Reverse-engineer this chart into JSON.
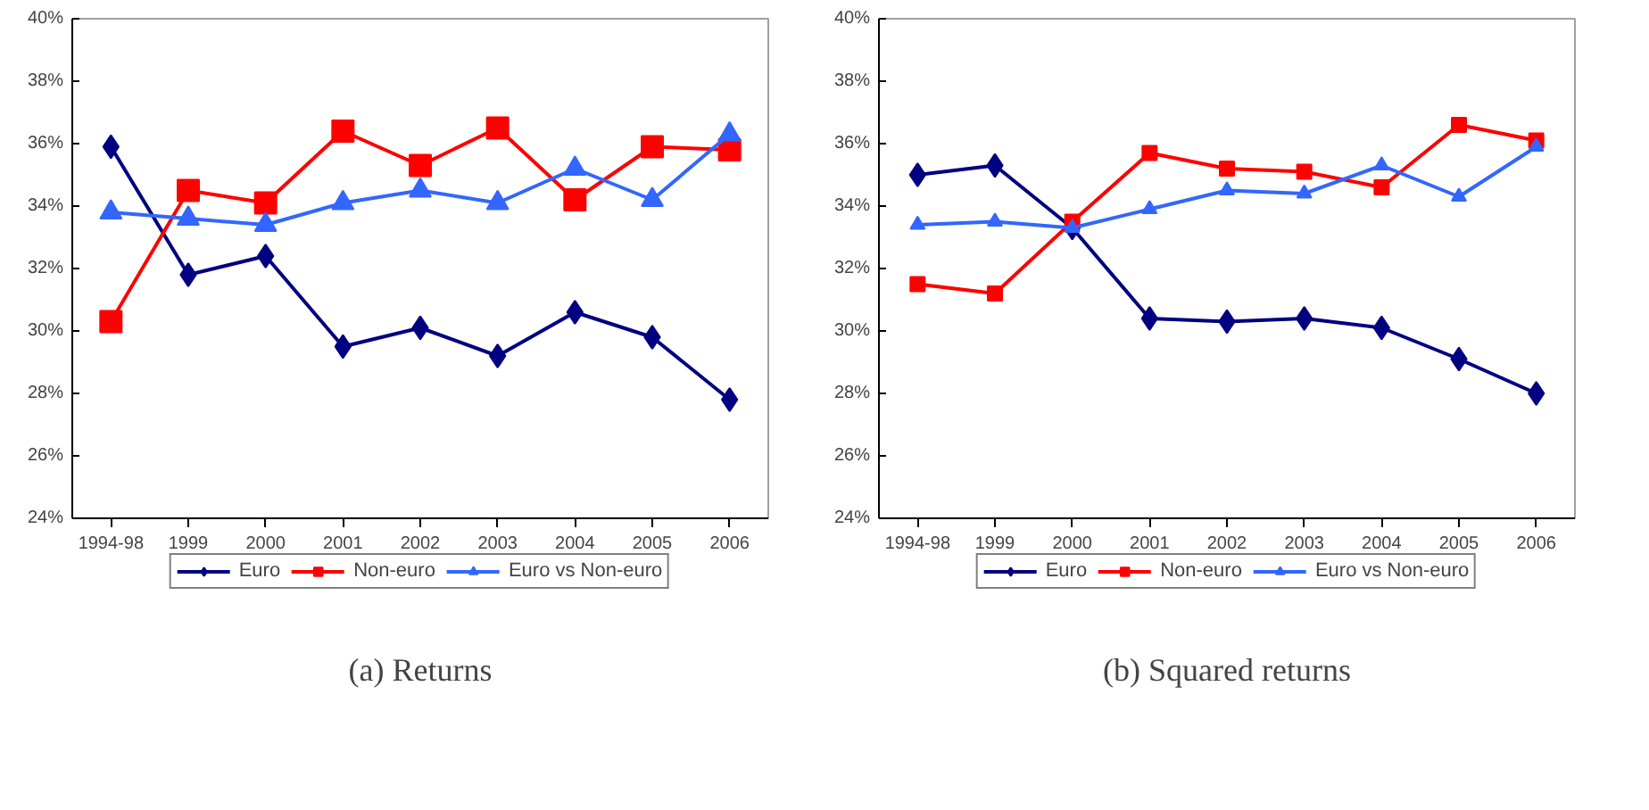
{
  "chart_data": [
    {
      "type": "line",
      "title": "(a) Returns",
      "categories": [
        "1994-98",
        "1999",
        "2000",
        "2001",
        "2002",
        "2003",
        "2004",
        "2005",
        "2006"
      ],
      "series": [
        {
          "name": "Euro",
          "color": "#000080",
          "marker": "diamond",
          "values": [
            35.9,
            31.8,
            32.4,
            29.5,
            30.1,
            29.2,
            30.6,
            29.8,
            27.8
          ]
        },
        {
          "name": "Non-euro",
          "color": "#ff0000",
          "marker": "square",
          "values": [
            30.3,
            34.5,
            34.1,
            36.4,
            35.3,
            36.5,
            34.2,
            35.9,
            35.8
          ]
        },
        {
          "name": "Euro vs Non-euro",
          "color": "#3366ff",
          "marker": "triangle",
          "values": [
            33.8,
            33.6,
            33.4,
            34.1,
            34.5,
            34.1,
            35.2,
            34.2,
            36.3
          ]
        }
      ],
      "ylim": [
        24,
        40
      ],
      "yticks": [
        {
          "value": 24,
          "label": "24%"
        },
        {
          "value": 26,
          "label": "26%"
        },
        {
          "value": 28,
          "label": "28%"
        },
        {
          "value": 30,
          "label": "30%"
        },
        {
          "value": 32,
          "label": "32%"
        },
        {
          "value": 34,
          "label": "34%"
        },
        {
          "value": 36,
          "label": "36%"
        },
        {
          "value": 38,
          "label": "38%"
        },
        {
          "value": 40,
          "label": "40%"
        }
      ],
      "grid": false,
      "legend": "bottom",
      "line_style": "solid"
    },
    {
      "type": "line",
      "title": "(b) Squared returns",
      "categories": [
        "1994-98",
        "1999",
        "2000",
        "2001",
        "2002",
        "2003",
        "2004",
        "2005",
        "2006"
      ],
      "series": [
        {
          "name": "Euro",
          "color": "#000080",
          "marker": "diamond",
          "values": [
            35.0,
            35.3,
            33.3,
            30.4,
            30.3,
            30.4,
            30.1,
            29.1,
            28.0
          ]
        },
        {
          "name": "Non-euro",
          "color": "#ff0000",
          "marker": "square",
          "values": [
            31.5,
            31.2,
            33.5,
            35.7,
            35.2,
            35.1,
            34.6,
            36.6,
            36.1
          ]
        },
        {
          "name": "Euro vs Non-euro",
          "color": "#3366ff",
          "marker": "triangle",
          "values": [
            33.4,
            33.5,
            33.3,
            33.9,
            34.5,
            34.4,
            35.3,
            34.3,
            35.9
          ]
        }
      ],
      "ylim": [
        24,
        40
      ],
      "yticks": [
        {
          "value": 24,
          "label": "24%"
        },
        {
          "value": 26,
          "label": "26%"
        },
        {
          "value": 28,
          "label": "28%"
        },
        {
          "value": 30,
          "label": "30%"
        },
        {
          "value": 32,
          "label": "32%"
        },
        {
          "value": 34,
          "label": "34%"
        },
        {
          "value": 36,
          "label": "36%"
        },
        {
          "value": 38,
          "label": "38%"
        },
        {
          "value": 40,
          "label": "40%"
        }
      ],
      "grid": false,
      "legend": "bottom",
      "line_style": "solid"
    }
  ]
}
